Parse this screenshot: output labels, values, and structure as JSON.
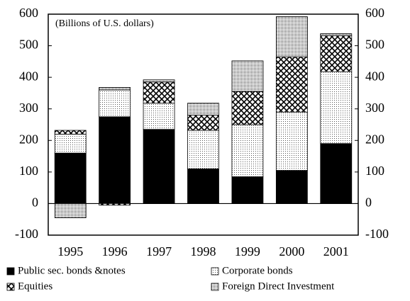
{
  "chart_data": {
    "type": "bar",
    "stacked": true,
    "subtitle": "(Billions of U.S. dollars)",
    "categories": [
      "1995",
      "1996",
      "1997",
      "1998",
      "1999",
      "2000",
      "2001"
    ],
    "series": [
      {
        "name": "Public sec. bonds &notes",
        "color": "#000000",
        "values": [
          160,
          275,
          235,
          110,
          85,
          105,
          190
        ]
      },
      {
        "name": "Corporate bonds",
        "color": "#d8d8d8",
        "values": [
          60,
          85,
          83,
          122,
          165,
          185,
          228
        ]
      },
      {
        "name": "Equities",
        "color": "#555555",
        "values": [
          12,
          -5,
          67,
          48,
          105,
          175,
          114
        ]
      },
      {
        "name": "Foreign Direct Investment",
        "color": "#999999",
        "values": [
          -45,
          8,
          7,
          38,
          97,
          127,
          6
        ]
      }
    ],
    "ylim": [
      -100,
      600
    ],
    "yticks": [
      -100,
      0,
      100,
      200,
      300,
      400,
      500,
      600
    ]
  }
}
